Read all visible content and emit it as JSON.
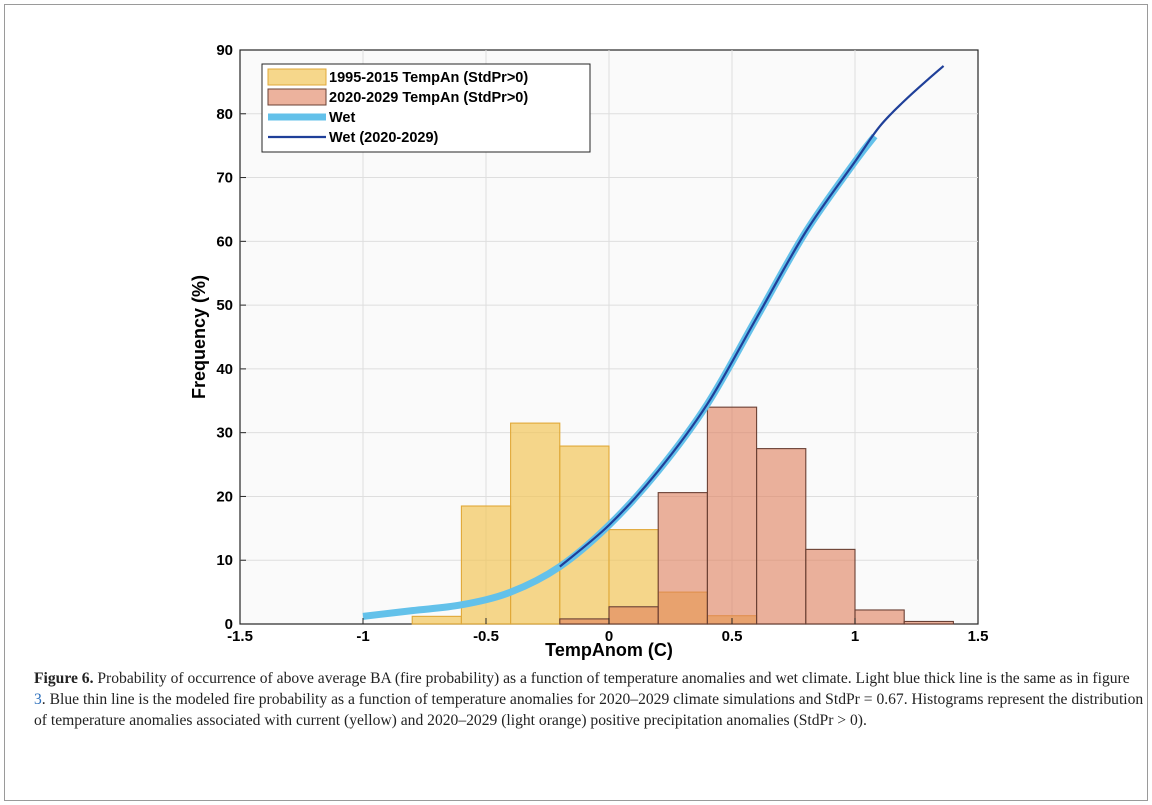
{
  "chart_data": {
    "type": "bar",
    "xlabel": "TempAnom (C)",
    "ylabel": "Frequency (%)",
    "xlim": [
      -1.5,
      1.5
    ],
    "ylim": [
      0,
      90
    ],
    "xticks": [
      "-1.5",
      "-1",
      "-0.5",
      "0",
      "0.5",
      "1",
      "1.5"
    ],
    "yticks": [
      "0",
      "10",
      "20",
      "30",
      "40",
      "50",
      "60",
      "70",
      "80",
      "90"
    ],
    "grid": true,
    "legend_position": "top-left",
    "series": [
      {
        "name": "1995-2015 TempAn (StdPr>0)",
        "kind": "histogram",
        "color": "#f2c65a",
        "bin_edges": [
          -0.8,
          -0.6,
          -0.4,
          -0.2,
          0.0,
          0.2,
          0.4,
          0.6
        ],
        "values": [
          1.2,
          18.5,
          31.5,
          27.9,
          14.8,
          5.0,
          1.3
        ]
      },
      {
        "name": "2020-2029 TempAn (StdPr>0)",
        "kind": "histogram",
        "color": "#e89a7c",
        "bin_edges": [
          -0.2,
          0.0,
          0.2,
          0.4,
          0.6,
          0.8,
          1.0,
          1.2,
          1.4
        ],
        "values": [
          0.8,
          2.7,
          20.6,
          34.0,
          27.5,
          11.7,
          2.2,
          0.4
        ]
      },
      {
        "name": "Wet",
        "kind": "line",
        "color": "#63c1ea",
        "x": [
          -1.0,
          -0.8,
          -0.6,
          -0.4,
          -0.2,
          0.0,
          0.2,
          0.4,
          0.6,
          0.8,
          1.0,
          1.08
        ],
        "y": [
          1.2,
          2.1,
          3.0,
          5.0,
          9.0,
          15.5,
          24.0,
          34.5,
          48.0,
          61.5,
          72.5,
          76.5
        ]
      },
      {
        "name": "Wet (2020-2029)",
        "kind": "line",
        "color": "#1f3f99",
        "x": [
          -0.2,
          0.0,
          0.2,
          0.4,
          0.6,
          0.8,
          1.0,
          1.1,
          1.2,
          1.3,
          1.36
        ],
        "y": [
          9.0,
          15.5,
          24.0,
          34.5,
          48.0,
          61.5,
          72.5,
          78.0,
          82.0,
          85.5,
          87.5
        ]
      }
    ]
  },
  "caption": {
    "figure_label": "Figure 6.",
    "text_1": " Probability of occurrence of above average BA (fire probability) as a function of temperature anomalies and wet climate. Light blue thick line is the same as in figure ",
    "figure_ref": "3",
    "text_2": ". Blue thin line is the modeled fire probability as a function of temperature anomalies for 2020–2029 climate simulations and StdPr = 0.67. Histograms represent the distribution of temperature anomalies associated with current (yellow) and 2020–2029 (light orange) positive precipitation anomalies (StdPr > 0)."
  }
}
